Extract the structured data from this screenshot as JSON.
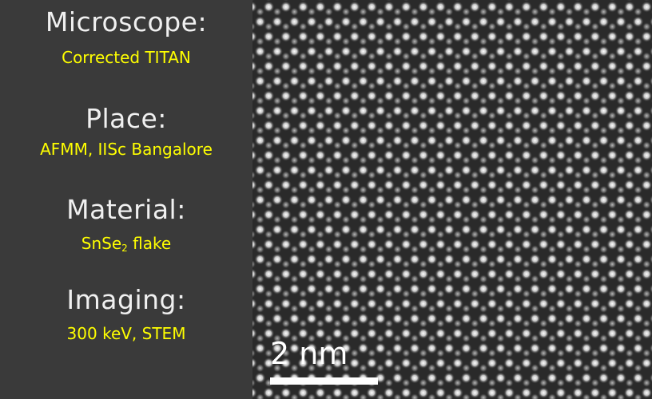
{
  "info": [
    {
      "heading": "Microscope:",
      "value": "Corrected TITAN"
    },
    {
      "heading": "Place:",
      "value": "AFMM, IISc Bangalore"
    },
    {
      "heading": "Material:",
      "value_main": "SnSe",
      "value_sub": "2",
      "value_rest": " flake"
    },
    {
      "heading": "Imaging:",
      "value": "300 keV, STEM"
    }
  ],
  "micrograph": {
    "description_icon": "atomic-lattice-image",
    "background_color": "#2a2a2a",
    "atom_color": "#ffffff"
  },
  "scale_bar": {
    "label": "2 nm"
  },
  "colors": {
    "panel_background": "#3a3a3a",
    "heading_text": "#f0f0f0",
    "value_text": "#ffff00"
  }
}
